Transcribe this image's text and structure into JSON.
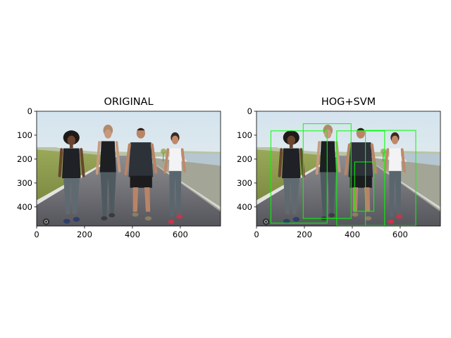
{
  "figure": {
    "background": "#ffffff"
  },
  "chart_data": [
    {
      "type": "image",
      "title": "ORIGINAL",
      "image_size": [
        768,
        480
      ],
      "xlim": [
        0,
        768
      ],
      "ylim": [
        480,
        0
      ],
      "xticks": [
        0,
        200,
        400,
        600
      ],
      "yticks": [
        0,
        100,
        200,
        300,
        400
      ],
      "content": "photo of four people walking on a path",
      "boxes": []
    },
    {
      "type": "image",
      "title": "HOG+SVM",
      "image_size": [
        768,
        480
      ],
      "xlim": [
        0,
        768
      ],
      "ylim": [
        480,
        0
      ],
      "xticks": [
        0,
        200,
        400,
        600
      ],
      "yticks": [
        0,
        100,
        200,
        300,
        400
      ],
      "content": "same photo with pedestrian detection boxes",
      "box_color": "#00ff00",
      "boxes": [
        {
          "x1": 60,
          "y1": 82,
          "x2": 295,
          "y2": 468
        },
        {
          "x1": 195,
          "y1": 52,
          "x2": 395,
          "y2": 448
        },
        {
          "x1": 335,
          "y1": 82,
          "x2": 535,
          "y2": 478
        },
        {
          "x1": 410,
          "y1": 212,
          "x2": 490,
          "y2": 418
        },
        {
          "x1": 455,
          "y1": 80,
          "x2": 665,
          "y2": 478
        }
      ]
    }
  ]
}
